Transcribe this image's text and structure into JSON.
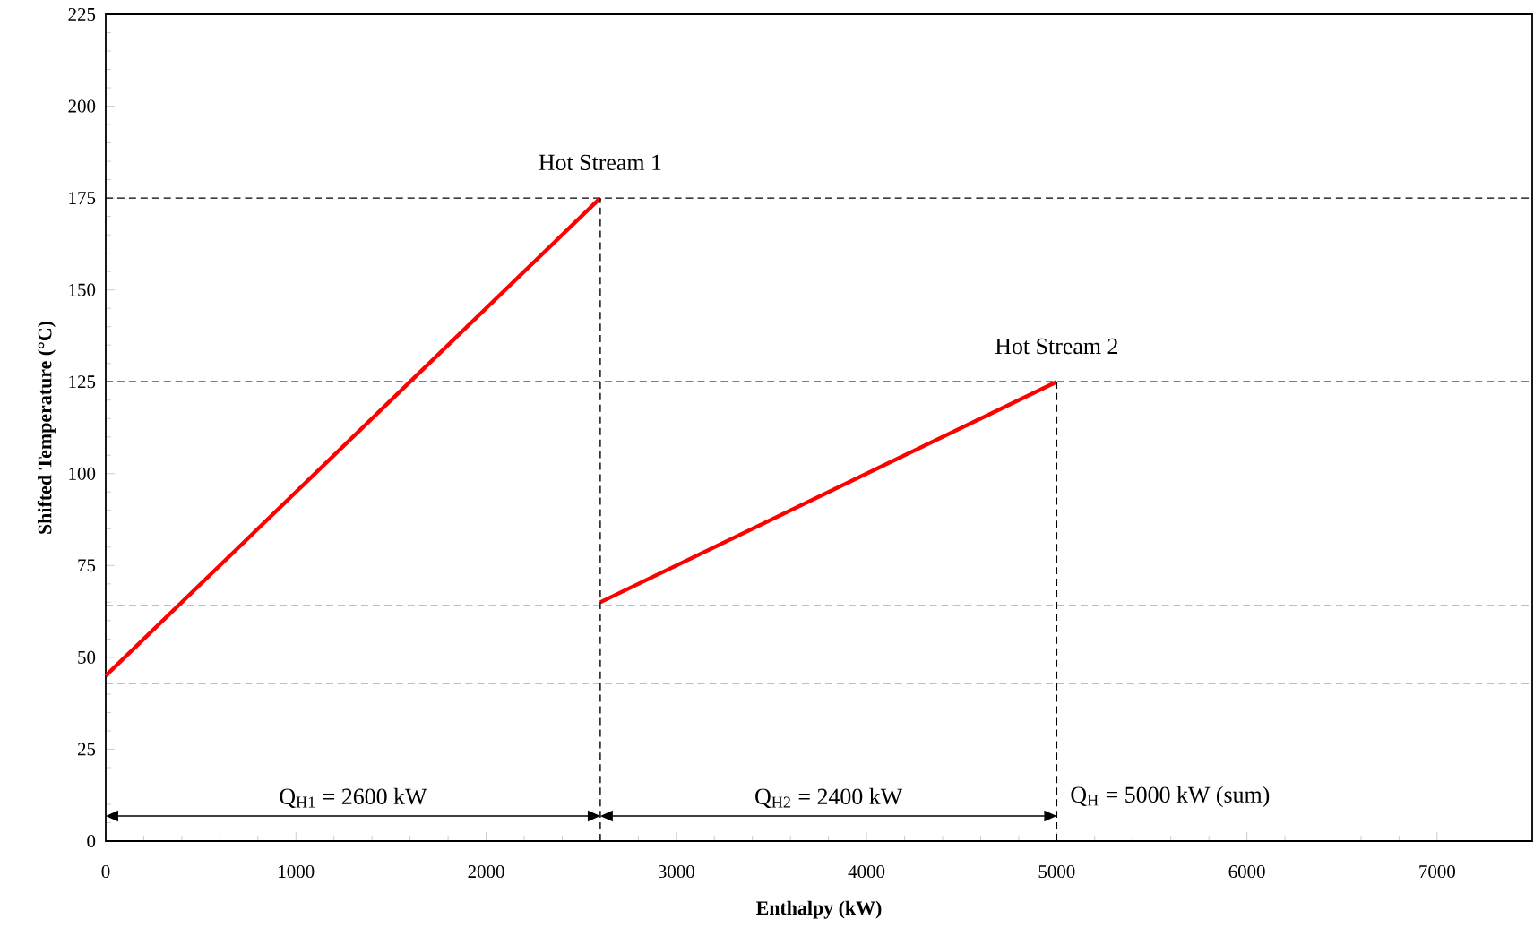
{
  "chart_data": {
    "type": "line",
    "xlabel": "Enthalpy (kW)",
    "ylabel": "Shifted Temperature (°C)",
    "xlim": [
      0,
      7500
    ],
    "xticks": [
      0,
      1000,
      2000,
      3000,
      4000,
      5000,
      6000,
      7000
    ],
    "ylim": [
      0,
      225
    ],
    "yticks": [
      0,
      25,
      50,
      75,
      100,
      125,
      150,
      175,
      200,
      225
    ],
    "series": [
      {
        "color": "#ff0000",
        "x": [
          0,
          2600
        ],
        "values": [
          45,
          175
        ]
      },
      {
        "color": "#ff0000",
        "x": [
          2600,
          5000
        ],
        "values": [
          65,
          125
        ]
      },
      {
        "color": "#000000",
        "x": [
          2600,
          2600
        ],
        "values": [
          0,
          175
        ],
        "line_style": "dashed"
      },
      {
        "color": "#000000",
        "x": [
          5000,
          5000
        ],
        "values": [
          0,
          125
        ],
        "line_style": "dashed"
      }
    ],
    "ref_lines": [
      {
        "axis": "y",
        "value": 175,
        "line_style": "dashed"
      },
      {
        "axis": "y",
        "value": 125,
        "line_style": "dashed"
      },
      {
        "axis": "y",
        "value": 64,
        "line_style": "dashed"
      },
      {
        "axis": "y",
        "value": 43,
        "line_style": "dashed"
      }
    ],
    "annotations": [
      "Hot Stream 1",
      "Hot Stream 2",
      "Q$_{H1}$ = 2600 kW",
      "Q$_{H2}$ = 2400 kW",
      {
        "text": "Q$_{H}$ = 5000 kW (sum)",
        "x": 5000,
        "y": 7
      }
    ]
  }
}
